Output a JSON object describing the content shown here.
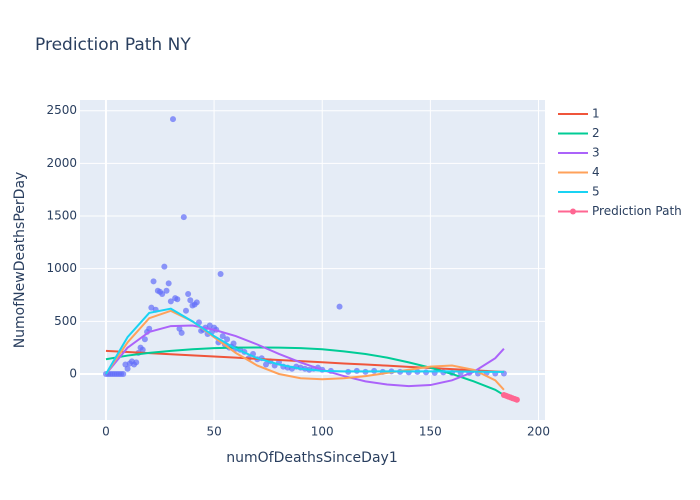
{
  "chart_data": {
    "type": "scatter-with-fits",
    "title": "Prediction Path NY",
    "x_label": "numOfDeathsSinceDay1",
    "y_label": "NumofNewDeathsPerDay",
    "xlim": [
      -12,
      203
    ],
    "ylim": [
      -437,
      2602
    ],
    "xticks": [
      0,
      50,
      100,
      150,
      200
    ],
    "yticks": [
      0,
      500,
      1000,
      1500,
      2000,
      2500
    ],
    "grid": true,
    "legend": "right",
    "points": {
      "color": "#636efa",
      "opacity": 0.7,
      "x": [
        0,
        1,
        2,
        3,
        4,
        5,
        6,
        7,
        8,
        9,
        10,
        11,
        12,
        13,
        14,
        15,
        16,
        17,
        18,
        19,
        20,
        21,
        22,
        23,
        24,
        25,
        26,
        27,
        28,
        29,
        30,
        31,
        32,
        33,
        34,
        35,
        36,
        37,
        38,
        39,
        40,
        41,
        42,
        43,
        44,
        45,
        46,
        47,
        48,
        49,
        50,
        51,
        52,
        53,
        54,
        55,
        56,
        57,
        58,
        59,
        60,
        62,
        64,
        66,
        68,
        70,
        72,
        74,
        76,
        78,
        80,
        82,
        84,
        86,
        88,
        90,
        92,
        94,
        96,
        98,
        100,
        104,
        108,
        112,
        116,
        120,
        124,
        128,
        132,
        136,
        140,
        144,
        148,
        152,
        156,
        160,
        164,
        168,
        172,
        176,
        180,
        184
      ],
      "values": [
        0,
        0,
        0,
        0,
        0,
        0,
        0,
        0,
        0,
        90,
        50,
        100,
        120,
        90,
        110,
        200,
        250,
        230,
        330,
        400,
        430,
        630,
        880,
        610,
        790,
        780,
        760,
        1020,
        790,
        860,
        690,
        2420,
        720,
        710,
        430,
        390,
        1490,
        600,
        760,
        700,
        650,
        660,
        680,
        490,
        410,
        420,
        440,
        380,
        460,
        400,
        440,
        420,
        300,
        950,
        360,
        280,
        330,
        250,
        260,
        290,
        240,
        230,
        210,
        150,
        190,
        140,
        150,
        90,
        120,
        80,
        110,
        70,
        60,
        50,
        70,
        60,
        50,
        40,
        50,
        60,
        40,
        30,
        640,
        20,
        30,
        20,
        30,
        20,
        25,
        20,
        15,
        20,
        15,
        10,
        15,
        10,
        10,
        10,
        5,
        10,
        5,
        5
      ]
    },
    "series": [
      {
        "name": "1",
        "color": "#ef553b",
        "x": [
          0,
          10,
          20,
          30,
          40,
          50,
          60,
          70,
          80,
          90,
          100,
          110,
          120,
          130,
          140,
          150,
          160,
          170,
          180,
          184
        ],
        "values": [
          220,
          209,
          198,
          187,
          177,
          166,
          155,
          144,
          133,
          122,
          111,
          100,
          90,
          79,
          68,
          57,
          46,
          35,
          24,
          20
        ]
      },
      {
        "name": "2",
        "color": "#00cc96",
        "x": [
          0,
          10,
          20,
          30,
          40,
          50,
          60,
          70,
          80,
          90,
          100,
          110,
          120,
          130,
          140,
          150,
          160,
          170,
          180,
          184
        ],
        "values": [
          140,
          175,
          200,
          220,
          235,
          245,
          250,
          252,
          250,
          245,
          235,
          215,
          190,
          155,
          110,
          60,
          0,
          -70,
          -150,
          -200
        ]
      },
      {
        "name": "3",
        "color": "#ab63fa",
        "x": [
          0,
          10,
          20,
          30,
          40,
          50,
          60,
          70,
          80,
          90,
          100,
          110,
          120,
          130,
          140,
          150,
          160,
          170,
          180,
          184
        ],
        "values": [
          0,
          250,
          400,
          455,
          460,
          420,
          360,
          280,
          190,
          110,
          40,
          -20,
          -70,
          -100,
          -115,
          -105,
          -60,
          20,
          150,
          240
        ]
      },
      {
        "name": "4",
        "color": "#ffa15a",
        "x": [
          0,
          10,
          20,
          30,
          40,
          50,
          60,
          70,
          80,
          90,
          100,
          110,
          120,
          130,
          140,
          150,
          160,
          170,
          180,
          184
        ],
        "values": [
          0,
          300,
          530,
          600,
          500,
          350,
          200,
          80,
          0,
          -40,
          -50,
          -40,
          -20,
          10,
          40,
          70,
          80,
          40,
          -60,
          -150
        ]
      },
      {
        "name": "5",
        "color": "#19d3f3",
        "x": [
          0,
          10,
          20,
          30,
          40,
          50,
          60,
          70,
          80,
          90,
          100,
          110,
          120,
          130,
          140,
          150,
          160,
          170,
          180,
          184
        ],
        "values": [
          0,
          350,
          580,
          620,
          500,
          360,
          240,
          150,
          90,
          50,
          30,
          25,
          25,
          25,
          25,
          25,
          25,
          22,
          20,
          20
        ]
      },
      {
        "name": "Prediction Path",
        "color": "#ff6692",
        "markers": true,
        "x": [
          184,
          185,
          186,
          187,
          188,
          189,
          190
        ],
        "values": [
          -200,
          -207,
          -215,
          -222,
          -230,
          -237,
          -245
        ]
      }
    ]
  }
}
